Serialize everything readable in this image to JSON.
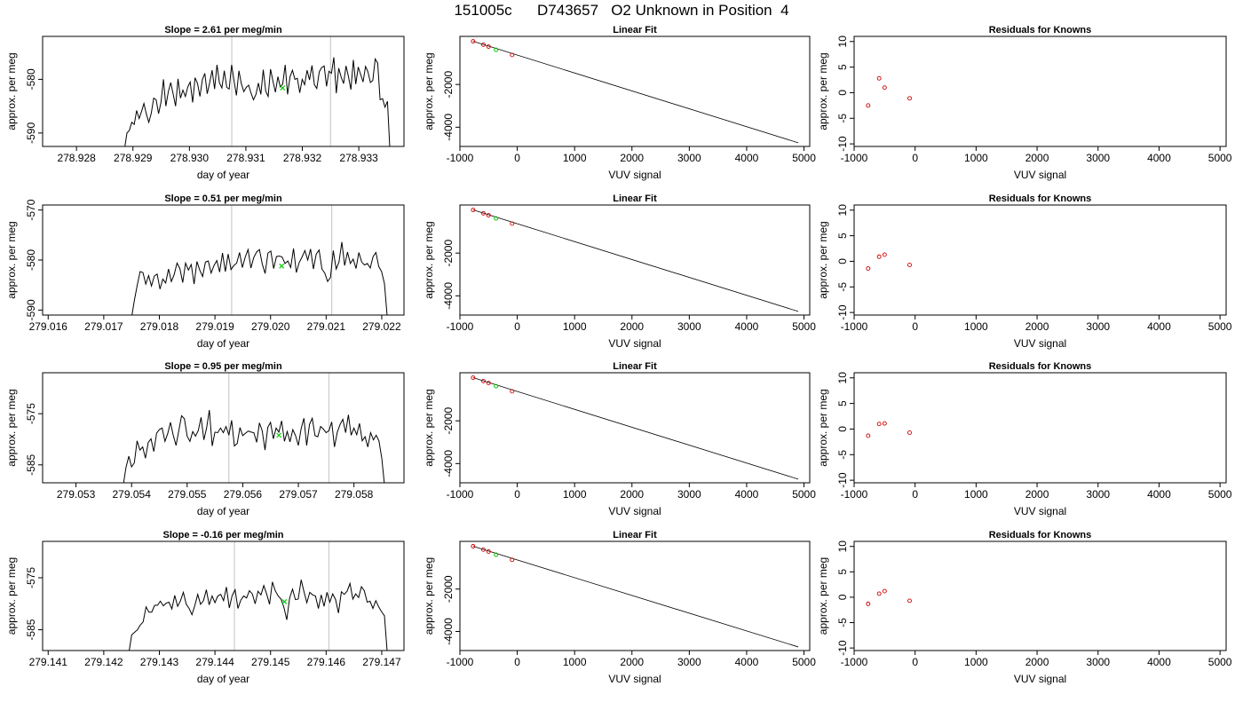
{
  "main_title": "151005c      D743657   O2 Unknown in Position  4",
  "colors": {
    "series": "#000000",
    "guide_line": "#cccccc",
    "marker_green": "#00cc00",
    "marker_red": "#cc0000"
  },
  "chart_data": [
    {
      "type": "line",
      "panel": "time-series",
      "row": 1,
      "title": "Slope =  2.61  per meg/min",
      "xlabel": "day of year",
      "ylabel": "approx. per meg",
      "xlim": [
        278.9274,
        278.9338
      ],
      "ylim": [
        -592.5,
        -572
      ],
      "xticks": [
        278.928,
        278.929,
        278.93,
        278.931,
        278.932,
        278.933
      ],
      "xtick_labels": [
        "278.928",
        "278.929",
        "278.930",
        "278.931",
        "278.932",
        "278.933"
      ],
      "yticks": [
        -590,
        -580
      ],
      "ytick_labels": [
        "-590",
        "-580"
      ],
      "vlines": [
        278.93075,
        278.9325
      ],
      "series_x_range": [
        278.92885,
        278.93355
      ],
      "series_y": [
        -593,
        -590,
        -589.5,
        -588,
        -588.4,
        -585.8,
        -587.3,
        -586,
        -584.5,
        -586.5,
        -588,
        -586.3,
        -583.5,
        -583.8,
        -586.4,
        -584.3,
        -580,
        -585,
        -582.3,
        -580.6,
        -582.8,
        -585,
        -579.9,
        -583.5,
        -582,
        -583.2,
        -581.4,
        -580.5,
        -584.3,
        -579.7,
        -580.8,
        -583.2,
        -580,
        -578.9,
        -582.7,
        -580.6,
        -578.3,
        -581.8,
        -577.3,
        -580.7,
        -581.6,
        -578.4,
        -581.5,
        -581.8,
        -577.3,
        -580.3,
        -583,
        -578.4,
        -580.8,
        -582.3,
        -581.5,
        -581.1,
        -582.6,
        -583.8,
        -582.8,
        -580.7,
        -582.8,
        -578.2,
        -582.2,
        -583.2,
        -578.1,
        -580.4,
        -582.4,
        -579.5,
        -581.4,
        -580.9,
        -577.3,
        -582.8,
        -579.5,
        -578.3,
        -580,
        -579.8,
        -582.5,
        -580,
        -581,
        -578.3,
        -580.1,
        -577.4,
        -581,
        -581.7,
        -578.6,
        -577.8,
        -577.5,
        -581.3,
        -578.5,
        -578.9,
        -575.9,
        -582.6,
        -577.9,
        -579.6,
        -580.8,
        -577.5,
        -579.5,
        -581.9,
        -576.4,
        -580.9,
        -577.7,
        -579.1,
        -580.5,
        -577.6,
        -578.6,
        -580.6,
        -580.2,
        -576.2,
        -577,
        -583.8,
        -583.6,
        -585.2,
        -584.1,
        -593
      ],
      "marker": {
        "x": 278.93165,
        "y": -581.6
      }
    },
    {
      "type": "scatter",
      "panel": "linear-fit",
      "row": 1,
      "title": "Linear Fit",
      "xlabel": "VUV signal",
      "ylabel": "approx. per meg",
      "xlim": [
        -1000,
        5100
      ],
      "ylim": [
        -4900,
        250
      ],
      "xticks": [
        -1000,
        0,
        1000,
        2000,
        3000,
        4000,
        5000
      ],
      "xtick_labels": [
        "-1000",
        "0",
        "1000",
        "2000",
        "3000",
        "4000",
        "5000"
      ],
      "yticks": [
        -4000,
        -2000
      ],
      "ytick_labels": [
        "-4000",
        "-2000"
      ],
      "points": [
        {
          "x": -770,
          "y": 20
        },
        {
          "x": -590,
          "y": -140
        },
        {
          "x": -500,
          "y": -230
        },
        {
          "x": -90,
          "y": -620
        }
      ],
      "unknown": {
        "x": -370,
        "y": -380
      },
      "fit_line": [
        {
          "x": -770,
          "y": 20
        },
        {
          "x": 4900,
          "y": -4730
        }
      ]
    },
    {
      "type": "scatter",
      "panel": "residuals",
      "row": 1,
      "title": "Residuals for Knowns",
      "xlabel": "VUV signal",
      "ylabel": "approx. per meg",
      "xlim": [
        -1000,
        5100
      ],
      "ylim": [
        -10.5,
        11
      ],
      "xticks": [
        -1000,
        0,
        1000,
        2000,
        3000,
        4000,
        5000
      ],
      "xtick_labels": [
        "-1000",
        "0",
        "1000",
        "2000",
        "3000",
        "4000",
        "5000"
      ],
      "yticks": [
        -10,
        -5,
        0,
        5,
        10
      ],
      "ytick_labels": [
        "-10",
        "-5",
        "0",
        "5",
        "10"
      ],
      "points": [
        {
          "x": -770,
          "y": -2.5
        },
        {
          "x": -590,
          "y": 2.8
        },
        {
          "x": -500,
          "y": 1.0
        },
        {
          "x": -90,
          "y": -1.1
        }
      ]
    },
    {
      "type": "line",
      "panel": "time-series",
      "row": 2,
      "title": "Slope =  0.51  per meg/min",
      "xlabel": "day of year",
      "ylabel": "approx. per meg",
      "xlim": [
        279.0159,
        279.0224
      ],
      "ylim": [
        -591,
        -569
      ],
      "xticks": [
        279.016,
        279.017,
        279.018,
        279.019,
        279.02,
        279.021,
        279.022
      ],
      "xtick_labels": [
        "279.016",
        "279.017",
        "279.018",
        "279.019",
        "279.020",
        "279.021",
        "279.022"
      ],
      "yticks": [
        -590,
        -580,
        -570
      ],
      "ytick_labels": [
        "-590",
        "-580",
        "-570"
      ],
      "vlines": [
        279.0193,
        279.0211
      ],
      "series_x_range": [
        279.0175,
        279.0221
      ],
      "series_y": [
        -591.5,
        -588,
        -585,
        -582.3,
        -582.5,
        -584.8,
        -583.1,
        -585.2,
        -583.2,
        -582.8,
        -585.8,
        -583.8,
        -584.6,
        -581.8,
        -584.3,
        -582.9,
        -580.6,
        -581.7,
        -584.5,
        -580.6,
        -582,
        -580.9,
        -584.8,
        -580.3,
        -582,
        -583.3,
        -580.4,
        -580.2,
        -582.6,
        -581.1,
        -580.1,
        -582.4,
        -578.6,
        -582.3,
        -578.8,
        -581.9,
        -581.1,
        -580.6,
        -578.5,
        -581.5,
        -579.4,
        -577.9,
        -581.6,
        -579.5,
        -578.4,
        -577.9,
        -580.8,
        -582.7,
        -578.6,
        -578.2,
        -581.7,
        -579.3,
        -579.2,
        -579.4,
        -580.7,
        -580.2,
        -581.5,
        -577.7,
        -582.5,
        -580.5,
        -579.4,
        -578.1,
        -580,
        -577.8,
        -581.8,
        -578.8,
        -578,
        -581.8,
        -582.6,
        -584.3,
        -583.5,
        -578.1,
        -581.8,
        -580.4,
        -576.4,
        -581.1,
        -578.4,
        -580.7,
        -579.8,
        -581.7,
        -578.5,
        -580.4,
        -581,
        -580.7,
        -581.6,
        -579.3,
        -578.5,
        -581.3,
        -582.3,
        -584.7,
        -591.5
      ],
      "marker": {
        "x": 279.0202,
        "y": -581.2
      }
    },
    {
      "type": "scatter",
      "panel": "linear-fit",
      "row": 2,
      "title": "Linear Fit",
      "xlabel": "VUV signal",
      "ylabel": "approx. per meg",
      "xlim": [
        -1000,
        5100
      ],
      "ylim": [
        -4900,
        250
      ],
      "xticks": [
        -1000,
        0,
        1000,
        2000,
        3000,
        4000,
        5000
      ],
      "xtick_labels": [
        "-1000",
        "0",
        "1000",
        "2000",
        "3000",
        "4000",
        "5000"
      ],
      "yticks": [
        -4000,
        -2000
      ],
      "ytick_labels": [
        "-4000",
        "-2000"
      ],
      "points": [
        {
          "x": -770,
          "y": 20
        },
        {
          "x": -590,
          "y": -140
        },
        {
          "x": -500,
          "y": -230
        },
        {
          "x": -90,
          "y": -620
        }
      ],
      "unknown": {
        "x": -370,
        "y": -380
      },
      "fit_line": [
        {
          "x": -770,
          "y": 20
        },
        {
          "x": 4900,
          "y": -4730
        }
      ]
    },
    {
      "type": "scatter",
      "panel": "residuals",
      "row": 2,
      "title": "Residuals for Knowns",
      "xlabel": "VUV signal",
      "ylabel": "approx. per meg",
      "xlim": [
        -1000,
        5100
      ],
      "ylim": [
        -10.5,
        11
      ],
      "xticks": [
        -1000,
        0,
        1000,
        2000,
        3000,
        4000,
        5000
      ],
      "xtick_labels": [
        "-1000",
        "0",
        "1000",
        "2000",
        "3000",
        "4000",
        "5000"
      ],
      "yticks": [
        -10,
        -5,
        0,
        5,
        10
      ],
      "ytick_labels": [
        "-10",
        "-5",
        "0",
        "5",
        "10"
      ],
      "points": [
        {
          "x": -770,
          "y": -1.4
        },
        {
          "x": -590,
          "y": 0.9
        },
        {
          "x": -500,
          "y": 1.3
        },
        {
          "x": -90,
          "y": -0.7
        }
      ]
    },
    {
      "type": "line",
      "panel": "time-series",
      "row": 3,
      "title": "Slope =  0.95  per meg/min",
      "xlabel": "day of year",
      "ylabel": "approx. per meg",
      "xlim": [
        279.0524,
        279.0589
      ],
      "ylim": [
        -588.5,
        -567
      ],
      "xticks": [
        279.053,
        279.054,
        279.055,
        279.056,
        279.057,
        279.058
      ],
      "xtick_labels": [
        "279.053",
        "279.054",
        "279.055",
        "279.056",
        "279.057",
        "279.058"
      ],
      "yticks": [
        -585,
        -575
      ],
      "ytick_labels": [
        "-585",
        "-575"
      ],
      "vlines": [
        279.05575,
        279.05755
      ],
      "series_x_range": [
        279.05385,
        279.05855
      ],
      "series_y": [
        -589,
        -585.5,
        -583.3,
        -585.4,
        -584.6,
        -580.3,
        -582.1,
        -581.5,
        -583.7,
        -580.6,
        -579.9,
        -582.4,
        -578.8,
        -578.1,
        -577.8,
        -580.4,
        -578.9,
        -576.7,
        -579.2,
        -581.2,
        -578.3,
        -575.4,
        -576,
        -579.4,
        -580.4,
        -578.5,
        -579.4,
        -578.3,
        -575.7,
        -580.1,
        -577.8,
        -574.3,
        -581.3,
        -578.6,
        -578.7,
        -577.8,
        -578.7,
        -577.5,
        -579.2,
        -576.3,
        -581.3,
        -580.8,
        -577.7,
        -579.3,
        -578.8,
        -578.4,
        -578.6,
        -578.7,
        -580.6,
        -576.8,
        -578.3,
        -582.1,
        -577.7,
        -576.7,
        -579.9,
        -577.8,
        -578.6,
        -576.4,
        -580.4,
        -578.5,
        -580.5,
        -578.1,
        -579.3,
        -581.2,
        -577.9,
        -575.9,
        -581.2,
        -577.1,
        -575.9,
        -579.3,
        -579.5,
        -577.5,
        -578,
        -578.7,
        -578.3,
        -576.6,
        -581.5,
        -578.6,
        -577.1,
        -576.1,
        -578.7,
        -575.2,
        -579.2,
        -577.8,
        -579.1,
        -576.9,
        -580.3,
        -579.5,
        -581.5,
        -578.7,
        -580.1,
        -579.2,
        -580.3,
        -583.7,
        -589
      ],
      "marker": {
        "x": 279.05665,
        "y": -579.2
      }
    },
    {
      "type": "scatter",
      "panel": "linear-fit",
      "row": 3,
      "title": "Linear Fit",
      "xlabel": "VUV signal",
      "ylabel": "approx. per meg",
      "xlim": [
        -1000,
        5100
      ],
      "ylim": [
        -4900,
        250
      ],
      "xticks": [
        -1000,
        0,
        1000,
        2000,
        3000,
        4000,
        5000
      ],
      "xtick_labels": [
        "-1000",
        "0",
        "1000",
        "2000",
        "3000",
        "4000",
        "5000"
      ],
      "yticks": [
        -4000,
        -2000
      ],
      "ytick_labels": [
        "-4000",
        "-2000"
      ],
      "points": [
        {
          "x": -770,
          "y": 20
        },
        {
          "x": -590,
          "y": -140
        },
        {
          "x": -500,
          "y": -230
        },
        {
          "x": -90,
          "y": -620
        }
      ],
      "unknown": {
        "x": -370,
        "y": -380
      },
      "fit_line": [
        {
          "x": -770,
          "y": 20
        },
        {
          "x": 4900,
          "y": -4730
        }
      ]
    },
    {
      "type": "scatter",
      "panel": "residuals",
      "row": 3,
      "title": "Residuals for Knowns",
      "xlabel": "VUV signal",
      "ylabel": "approx. per meg",
      "xlim": [
        -1000,
        5100
      ],
      "ylim": [
        -10.5,
        11
      ],
      "xticks": [
        -1000,
        0,
        1000,
        2000,
        3000,
        4000,
        5000
      ],
      "xtick_labels": [
        "-1000",
        "0",
        "1000",
        "2000",
        "3000",
        "4000",
        "5000"
      ],
      "yticks": [
        -10,
        -5,
        0,
        5,
        10
      ],
      "ytick_labels": [
        "-10",
        "-5",
        "0",
        "5",
        "10"
      ],
      "points": [
        {
          "x": -770,
          "y": -1.3
        },
        {
          "x": -590,
          "y": 1.0
        },
        {
          "x": -500,
          "y": 1.1
        },
        {
          "x": -90,
          "y": -0.7
        }
      ]
    },
    {
      "type": "line",
      "panel": "time-series",
      "row": 4,
      "title": "Slope =  -0.16  per meg/min",
      "xlabel": "day of year",
      "ylabel": "approx. per meg",
      "xlim": [
        279.1409,
        279.1474
      ],
      "ylim": [
        -589,
        -568
      ],
      "xticks": [
        279.141,
        279.142,
        279.143,
        279.144,
        279.145,
        279.146,
        279.147
      ],
      "xtick_labels": [
        "279.141",
        "279.142",
        "279.143",
        "279.144",
        "279.145",
        "279.146",
        "279.147"
      ],
      "yticks": [
        -585,
        -575
      ],
      "ytick_labels": [
        "-585",
        "-575"
      ],
      "vlines": [
        279.14435,
        279.14605
      ],
      "series_x_range": [
        279.14245,
        279.1471
      ],
      "series_y": [
        -589.5,
        -586,
        -585.5,
        -585,
        -584.1,
        -583.5,
        -580.6,
        -581.6,
        -581.6,
        -580.3,
        -580.3,
        -579.5,
        -580.4,
        -579.9,
        -579.7,
        -581,
        -578.4,
        -580.5,
        -579.4,
        -577.8,
        -580.1,
        -580.9,
        -582.1,
        -580.3,
        -578.2,
        -580.1,
        -579.4,
        -577.3,
        -580.2,
        -578.5,
        -579.8,
        -578.5,
        -578.2,
        -579.4,
        -576.8,
        -580.8,
        -578.4,
        -577.3,
        -580.9,
        -579.3,
        -578.5,
        -578.9,
        -577.5,
        -578.1,
        -580,
        -577.6,
        -578.3,
        -576.5,
        -578.1,
        -580.1,
        -575.8,
        -577.5,
        -578.5,
        -579.1,
        -580.7,
        -583.1,
        -578.9,
        -577.2,
        -579.2,
        -579.1,
        -575.4,
        -577.7,
        -579.8,
        -577.8,
        -578.3,
        -578.5,
        -580.9,
        -578.3,
        -580.5,
        -577.8,
        -579.7,
        -578.1,
        -579.2,
        -581.8,
        -577.7,
        -578.2,
        -577.6,
        -576.1,
        -579.1,
        -578.1,
        -578.8,
        -576.7,
        -577.5,
        -579.7,
        -579.5,
        -580.9,
        -579.4,
        -580.6,
        -581.5,
        -582.3,
        -589.5
      ],
      "marker": {
        "x": 279.14525,
        "y": -579.6
      }
    },
    {
      "type": "scatter",
      "panel": "linear-fit",
      "row": 4,
      "title": "Linear Fit",
      "xlabel": "VUV signal",
      "ylabel": "approx. per meg",
      "xlim": [
        -1000,
        5100
      ],
      "ylim": [
        -4900,
        250
      ],
      "xticks": [
        -1000,
        0,
        1000,
        2000,
        3000,
        4000,
        5000
      ],
      "xtick_labels": [
        "-1000",
        "0",
        "1000",
        "2000",
        "3000",
        "4000",
        "5000"
      ],
      "yticks": [
        -4000,
        -2000
      ],
      "ytick_labels": [
        "-4000",
        "-2000"
      ],
      "points": [
        {
          "x": -770,
          "y": 20
        },
        {
          "x": -590,
          "y": -140
        },
        {
          "x": -500,
          "y": -230
        },
        {
          "x": -90,
          "y": -620
        }
      ],
      "unknown": {
        "x": -370,
        "y": -380
      },
      "fit_line": [
        {
          "x": -770,
          "y": 20
        },
        {
          "x": 4900,
          "y": -4730
        }
      ]
    },
    {
      "type": "scatter",
      "panel": "residuals",
      "row": 4,
      "title": "Residuals for Knowns",
      "xlabel": "VUV signal",
      "ylabel": "approx. per meg",
      "xlim": [
        -1000,
        5100
      ],
      "ylim": [
        -10.5,
        11
      ],
      "xticks": [
        -1000,
        0,
        1000,
        2000,
        3000,
        4000,
        5000
      ],
      "xtick_labels": [
        "-1000",
        "0",
        "1000",
        "2000",
        "3000",
        "4000",
        "5000"
      ],
      "yticks": [
        -10,
        -5,
        0,
        5,
        10
      ],
      "ytick_labels": [
        "-10",
        "-5",
        "0",
        "5",
        "10"
      ],
      "points": [
        {
          "x": -770,
          "y": -1.3
        },
        {
          "x": -590,
          "y": 0.7
        },
        {
          "x": -500,
          "y": 1.2
        },
        {
          "x": -90,
          "y": -0.7
        }
      ]
    }
  ]
}
